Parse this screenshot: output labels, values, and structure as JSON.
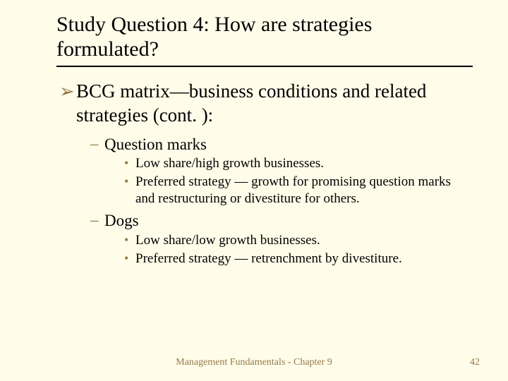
{
  "title": "Study Question 4: How are strategies formulated?",
  "bullet_colors": {
    "arrow": "#967848",
    "dash": "#967848",
    "dot": "#967848"
  },
  "background_color": "#fffde9",
  "content": {
    "main": {
      "text": "BCG matrix—business conditions and related strategies (cont. ):",
      "sub": [
        {
          "text": "Question marks",
          "points": [
            "Low share/high growth businesses.",
            "Preferred strategy — growth for promising question marks and restructuring or divestiture for others."
          ]
        },
        {
          "text": "Dogs",
          "points": [
            "Low share/low growth businesses.",
            "Preferred strategy — retrenchment by divestiture."
          ]
        }
      ]
    }
  },
  "footer": "Management Fundamentals - Chapter 9",
  "page_number": "42"
}
